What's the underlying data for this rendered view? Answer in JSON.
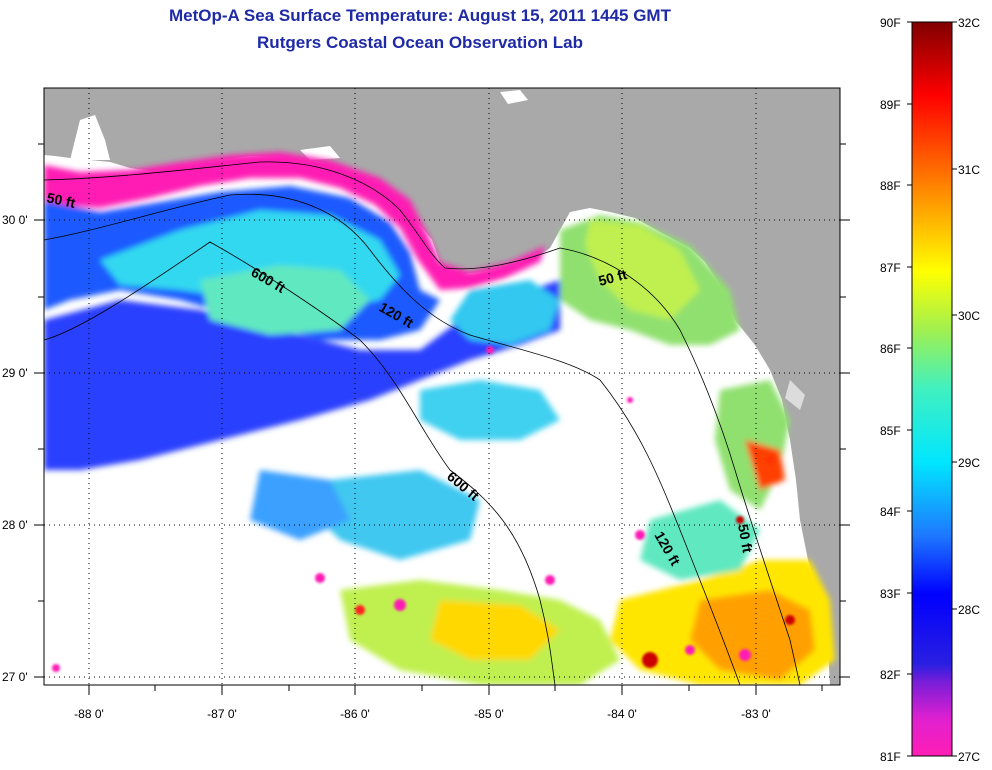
{
  "title": "MetOp-A Sea Surface Temperature:  August 15, 2011 1445 GMT",
  "subtitle": "Rutgers Coastal Ocean Observation Lab",
  "map": {
    "lon_ticks": [
      "-88 0'",
      "-87 0'",
      "-86 0'",
      "-85 0'",
      "-84 0'",
      "-83 0'"
    ],
    "lat_ticks": [
      "30 0'",
      "29 0'",
      "28 0'",
      "27 0'"
    ],
    "contour_labels": [
      "50 ft",
      "600 ft",
      "120 ft",
      "50 ft",
      "600 ft",
      "120 ft",
      "50 ft"
    ],
    "colors": {
      "land": "#a9a9a9",
      "cloud": "#ffffff",
      "contour": "#000000"
    }
  },
  "colorbar": {
    "f_labels": [
      "90F",
      "89F",
      "88F",
      "87F",
      "86F",
      "85F",
      "84F",
      "83F",
      "82F",
      "81F"
    ],
    "c_labels": [
      "32C",
      "31C",
      "30C",
      "29C",
      "28C",
      "27C"
    ],
    "range_f": [
      81,
      90
    ],
    "range_c": [
      27,
      32
    ]
  }
}
